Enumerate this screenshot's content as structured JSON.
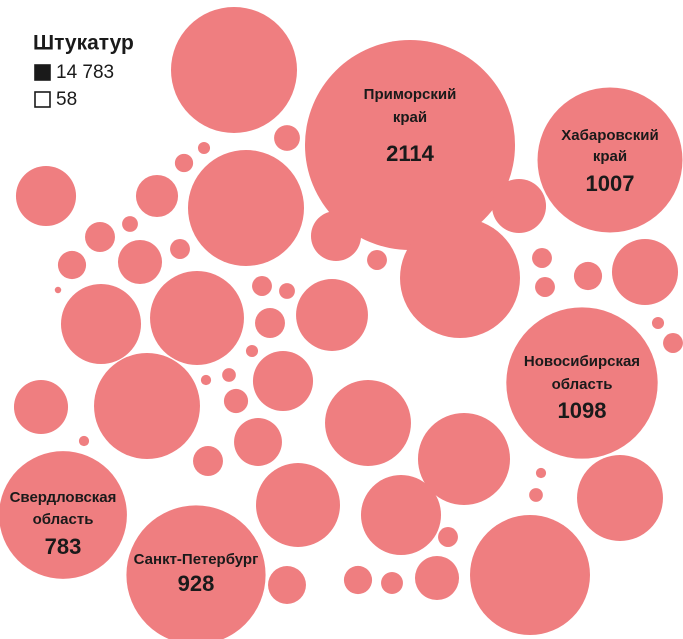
{
  "chart_data": {
    "type": "bubble",
    "color": "#ef7e80",
    "legend": {
      "title": "Штукатур",
      "items": [
        {
          "marker": "filled",
          "label": "14 783"
        },
        {
          "marker": "empty",
          "label": "58"
        }
      ]
    },
    "bubbles": [
      {
        "value": 761
      },
      {
        "label": [
          "Приморский",
          "край"
        ],
        "value": 2114
      },
      {
        "label": [
          "Хабаровский",
          "край"
        ],
        "value": 1007
      },
      {
        "value": 32
      },
      {
        "value": 7
      },
      {
        "value": 16
      },
      {
        "value": 173
      },
      {
        "value": 85
      },
      {
        "value": 645
      },
      {
        "value": 140
      },
      {
        "value": 12
      },
      {
        "value": 43
      },
      {
        "value": 120
      },
      {
        "value": 93
      },
      {
        "value": 19
      },
      {
        "value": 38
      },
      {
        "value": 19
      },
      {
        "value": 690
      },
      {
        "value": 19
      },
      {
        "value": 38
      },
      {
        "value": 209
      },
      {
        "value": 2
      },
      {
        "value": 307
      },
      {
        "value": 423
      },
      {
        "value": 19
      },
      {
        "value": 12
      },
      {
        "value": 248
      },
      {
        "value": 19
      },
      {
        "value": 43
      },
      {
        "label": [
          "Новосибирская",
          "область"
        ],
        "value": 1098
      },
      {
        "value": 7
      },
      {
        "value": 19
      },
      {
        "value": 7
      },
      {
        "value": 173
      },
      {
        "value": 140
      },
      {
        "value": 538
      },
      {
        "value": 9
      },
      {
        "value": 5
      },
      {
        "value": 28
      },
      {
        "value": 354
      },
      {
        "value": 5
      },
      {
        "value": 110
      },
      {
        "value": 406
      },
      {
        "value": 43
      },
      {
        "value": 5
      },
      {
        "value": 9
      },
      {
        "value": 354
      },
      {
        "label": [
          "Свердловская",
          "область"
        ],
        "value": 783
      },
      {
        "value": 338
      },
      {
        "value": 307
      },
      {
        "label": [
          "Санкт-Петербург"
        ],
        "value": 928
      },
      {
        "value": 690
      },
      {
        "value": 19
      },
      {
        "value": 93
      },
      {
        "value": 38
      },
      {
        "value": 23
      },
      {
        "value": 69
      }
    ]
  }
}
